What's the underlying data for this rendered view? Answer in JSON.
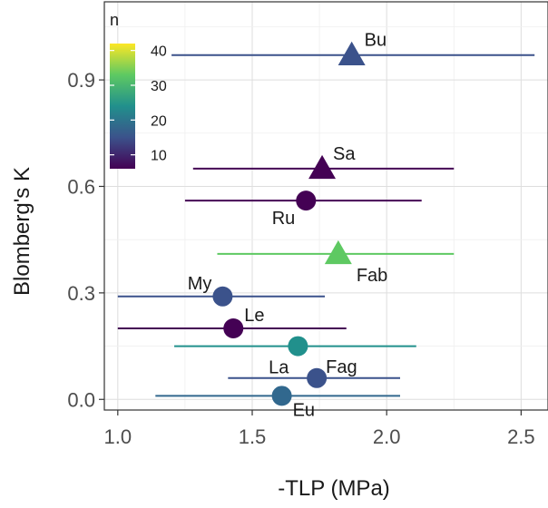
{
  "chart_data": {
    "type": "scatter",
    "xlabel": "-TLP (MPa)",
    "ylabel": "Blomberg's K",
    "xlim": [
      0.95,
      2.6
    ],
    "ylim": [
      -0.03,
      1.12
    ],
    "x_ticks": [
      "1.0",
      "1.5",
      "2.0",
      "2.5"
    ],
    "y_ticks": [
      "0.0",
      "0.3",
      "0.6",
      "0.9"
    ],
    "grid": true,
    "legend": {
      "title": "n",
      "position": "top-left",
      "ticks": [
        "10",
        "20",
        "30",
        "40"
      ],
      "range": [
        6,
        42
      ]
    },
    "points": [
      {
        "label": "Bu",
        "x": 1.87,
        "y": 0.97,
        "xmin": 1.2,
        "xmax": 2.55,
        "n": 14,
        "shape": "triangle",
        "color": "#3b528b"
      },
      {
        "label": "Sa",
        "x": 1.76,
        "y": 0.65,
        "xmin": 1.28,
        "xmax": 2.25,
        "n": 8,
        "shape": "triangle",
        "color": "#440154"
      },
      {
        "label": "Ru",
        "x": 1.7,
        "y": 0.56,
        "xmin": 1.25,
        "xmax": 2.13,
        "n": 9,
        "shape": "circle",
        "color": "#440154"
      },
      {
        "label": "Fab",
        "x": 1.82,
        "y": 0.41,
        "xmin": 1.37,
        "xmax": 2.25,
        "n": 33,
        "shape": "triangle",
        "color": "#5ec962"
      },
      {
        "label": "My",
        "x": 1.39,
        "y": 0.29,
        "xmin": 1.0,
        "xmax": 1.77,
        "n": 16,
        "shape": "circle",
        "color": "#3b528b"
      },
      {
        "label": "Le",
        "x": 1.43,
        "y": 0.2,
        "xmin": 1.0,
        "xmax": 1.85,
        "n": 9,
        "shape": "circle",
        "color": "#440154"
      },
      {
        "label": "La",
        "x": 1.67,
        "y": 0.15,
        "xmin": 1.21,
        "xmax": 2.11,
        "n": 23,
        "shape": "circle",
        "color": "#21908c"
      },
      {
        "label": "Fag",
        "x": 1.74,
        "y": 0.06,
        "xmin": 1.41,
        "xmax": 2.05,
        "n": 17,
        "shape": "circle",
        "color": "#3b528b"
      },
      {
        "label": "Eu",
        "x": 1.61,
        "y": 0.01,
        "xmin": 1.14,
        "xmax": 2.05,
        "n": 18,
        "shape": "circle",
        "color": "#31688e"
      }
    ]
  }
}
